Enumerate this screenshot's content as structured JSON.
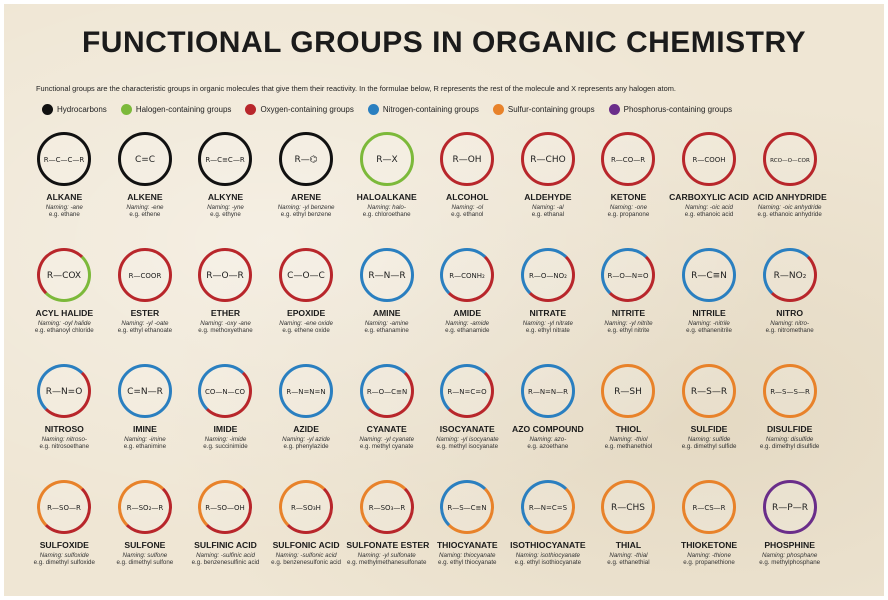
{
  "title": "FUNCTIONAL GROUPS IN ORGANIC CHEMISTRY",
  "subtitle": "Functional groups are the characteristic groups in organic molecules that give them their reactivity. In the formulae below, R represents the rest of the molecule and X represents any halogen atom.",
  "legend": [
    {
      "label": "Hydrocarbons",
      "color": "#111111"
    },
    {
      "label": "Halogen-containing groups",
      "color": "#7cb93a"
    },
    {
      "label": "Oxygen-containing groups",
      "color": "#b8262b"
    },
    {
      "label": "Nitrogen-containing groups",
      "color": "#2a7fc0"
    },
    {
      "label": "Sulfur-containing groups",
      "color": "#e8822a"
    },
    {
      "label": "Phosphorus-containing groups",
      "color": "#6a2d8a"
    }
  ],
  "groups": [
    {
      "name": "ALKANE",
      "naming": "Naming: -ane",
      "example": "e.g. ethane",
      "formula": "R—C—C—R",
      "color": "#111111"
    },
    {
      "name": "ALKENE",
      "naming": "Naming: -ene",
      "example": "e.g. ethene",
      "formula": "C=C",
      "color": "#111111"
    },
    {
      "name": "ALKYNE",
      "naming": "Naming: -yne",
      "example": "e.g. ethyne",
      "formula": "R—C≡C—R",
      "color": "#111111"
    },
    {
      "name": "ARENE",
      "naming": "Naming: -yl benzene",
      "example": "e.g. ethyl benzene",
      "formula": "R—⌬",
      "color": "#111111"
    },
    {
      "name": "HALOALKANE",
      "naming": "Naming: halo-",
      "example": "e.g. chloroethane",
      "formula": "R—X",
      "color": "#7cb93a"
    },
    {
      "name": "ALCOHOL",
      "naming": "Naming: -ol",
      "example": "e.g. ethanol",
      "formula": "R—OH",
      "color": "#b8262b"
    },
    {
      "name": "ALDEHYDE",
      "naming": "Naming: -al",
      "example": "e.g. ethanal",
      "formula": "R—CHO",
      "color": "#b8262b"
    },
    {
      "name": "KETONE",
      "naming": "Naming: -one",
      "example": "e.g. propanone",
      "formula": "R—CO—R",
      "color": "#b8262b"
    },
    {
      "name": "CARBOXYLIC ACID",
      "naming": "Naming: -oic acid",
      "example": "e.g. ethanoic acid",
      "formula": "R—COOH",
      "color": "#b8262b"
    },
    {
      "name": "ACID ANHYDRIDE",
      "naming": "Naming: -oic anhydride",
      "example": "e.g. ethanoic anhydride",
      "formula": "RCO—O—COR",
      "color": "#b8262b"
    },
    {
      "name": "ACYL HALIDE",
      "naming": "Naming: -oyl halide",
      "example": "e.g. ethanoyl chloride",
      "formula": "R—COX",
      "color": "#b8262b",
      "color2": "#7cb93a"
    },
    {
      "name": "ESTER",
      "naming": "Naming: -yl -oate",
      "example": "e.g. ethyl ethanoate",
      "formula": "R—COOR",
      "color": "#b8262b"
    },
    {
      "name": "ETHER",
      "naming": "Naming: -oxy -ane",
      "example": "e.g. methoxyethane",
      "formula": "R—O—R",
      "color": "#b8262b"
    },
    {
      "name": "EPOXIDE",
      "naming": "Naming: -ene oxide",
      "example": "e.g. ethene oxide",
      "formula": "C—O—C",
      "color": "#b8262b"
    },
    {
      "name": "AMINE",
      "naming": "Naming: -amine",
      "example": "e.g. ethanamine",
      "formula": "R—N—R",
      "color": "#2a7fc0"
    },
    {
      "name": "AMIDE",
      "naming": "Naming: -amide",
      "example": "e.g. ethanamide",
      "formula": "R—CONH₂",
      "color": "#2a7fc0",
      "color2": "#b8262b"
    },
    {
      "name": "NITRATE",
      "naming": "Naming: -yl nitrate",
      "example": "e.g. ethyl nitrate",
      "formula": "R—O—NO₂",
      "color": "#2a7fc0",
      "color2": "#b8262b"
    },
    {
      "name": "NITRITE",
      "naming": "Naming: -yl nitrite",
      "example": "e.g. ethyl nitrite",
      "formula": "R—O—N=O",
      "color": "#2a7fc0",
      "color2": "#b8262b"
    },
    {
      "name": "NITRILE",
      "naming": "Naming: -nitrile",
      "example": "e.g. ethanenitrile",
      "formula": "R—C≡N",
      "color": "#2a7fc0"
    },
    {
      "name": "NITRO",
      "naming": "Naming: nitro-",
      "example": "e.g. nitromethane",
      "formula": "R—NO₂",
      "color": "#2a7fc0",
      "color2": "#b8262b"
    },
    {
      "name": "NITROSO",
      "naming": "Naming: nitroso-",
      "example": "e.g. nitrosoethane",
      "formula": "R—N=O",
      "color": "#2a7fc0",
      "color2": "#b8262b"
    },
    {
      "name": "IMINE",
      "naming": "Naming: -imine",
      "example": "e.g. ethanimine",
      "formula": "C=N—R",
      "color": "#2a7fc0"
    },
    {
      "name": "IMIDE",
      "naming": "Naming: -imide",
      "example": "e.g. succinimide",
      "formula": "CO—N—CO",
      "color": "#2a7fc0",
      "color2": "#b8262b"
    },
    {
      "name": "AZIDE",
      "naming": "Naming: -yl azide",
      "example": "e.g. phenylazide",
      "formula": "R—N=N=N",
      "color": "#2a7fc0"
    },
    {
      "name": "CYANATE",
      "naming": "Naming: -yl cyanate",
      "example": "e.g. methyl cyanate",
      "formula": "R—O—C≡N",
      "color": "#2a7fc0",
      "color2": "#b8262b"
    },
    {
      "name": "ISOCYANATE",
      "naming": "Naming: -yl isocyanate",
      "example": "e.g. methyl isocyanate",
      "formula": "R—N=C=O",
      "color": "#2a7fc0",
      "color2": "#b8262b"
    },
    {
      "name": "AZO COMPOUND",
      "naming": "Naming: azo-",
      "example": "e.g. azoethane",
      "formula": "R—N=N—R",
      "color": "#2a7fc0"
    },
    {
      "name": "THIOL",
      "naming": "Naming: -thiol",
      "example": "e.g. methanethiol",
      "formula": "R—SH",
      "color": "#e8822a"
    },
    {
      "name": "SULFIDE",
      "naming": "Naming: sulfide",
      "example": "e.g. dimethyl sulfide",
      "formula": "R—S—R",
      "color": "#e8822a"
    },
    {
      "name": "DISULFIDE",
      "naming": "Naming: disulfide",
      "example": "e.g. dimethyl disulfide",
      "formula": "R—S—S—R",
      "color": "#e8822a"
    },
    {
      "name": "SULFOXIDE",
      "naming": "Naming: sulfoxide",
      "example": "e.g. dimethyl sulfoxide",
      "formula": "R—SO—R",
      "color": "#e8822a",
      "color2": "#b8262b"
    },
    {
      "name": "SULFONE",
      "naming": "Naming: sulfone",
      "example": "e.g. dimethyl sulfone",
      "formula": "R—SO₂—R",
      "color": "#e8822a",
      "color2": "#b8262b"
    },
    {
      "name": "SULFINIC ACID",
      "naming": "Naming: -sulfinic acid",
      "example": "e.g. benzenesulfinic acid",
      "formula": "R—SO—OH",
      "color": "#e8822a",
      "color2": "#b8262b"
    },
    {
      "name": "SULFONIC ACID",
      "naming": "Naming: -sulfonic acid",
      "example": "e.g. benzenesulfonic acid",
      "formula": "R—SO₃H",
      "color": "#e8822a",
      "color2": "#b8262b"
    },
    {
      "name": "SULFONATE ESTER",
      "naming": "Naming: -yl sulfonate",
      "example": "e.g. methylmethanesulfonate",
      "formula": "R—SO₃—R",
      "color": "#e8822a",
      "color2": "#b8262b"
    },
    {
      "name": "THIOCYANATE",
      "naming": "Naming: thiocyanate",
      "example": "e.g. ethyl thiocyanate",
      "formula": "R—S—C≡N",
      "color": "#2a7fc0",
      "color2": "#e8822a"
    },
    {
      "name": "ISOTHIOCYANATE",
      "naming": "Naming: isothiocyanate",
      "example": "e.g. ethyl isothiocyanate",
      "formula": "R—N=C=S",
      "color": "#2a7fc0",
      "color2": "#e8822a"
    },
    {
      "name": "THIAL",
      "naming": "Naming: -thial",
      "example": "e.g. ethanethial",
      "formula": "R—CHS",
      "color": "#e8822a"
    },
    {
      "name": "THIOKETONE",
      "naming": "Naming: -thione",
      "example": "e.g. propanethione",
      "formula": "R—CS—R",
      "color": "#e8822a"
    },
    {
      "name": "PHOSPHINE",
      "naming": "Naming: phosphane",
      "example": "e.g. methylphosphane",
      "formula": "R—P—R",
      "color": "#6a2d8a"
    }
  ]
}
